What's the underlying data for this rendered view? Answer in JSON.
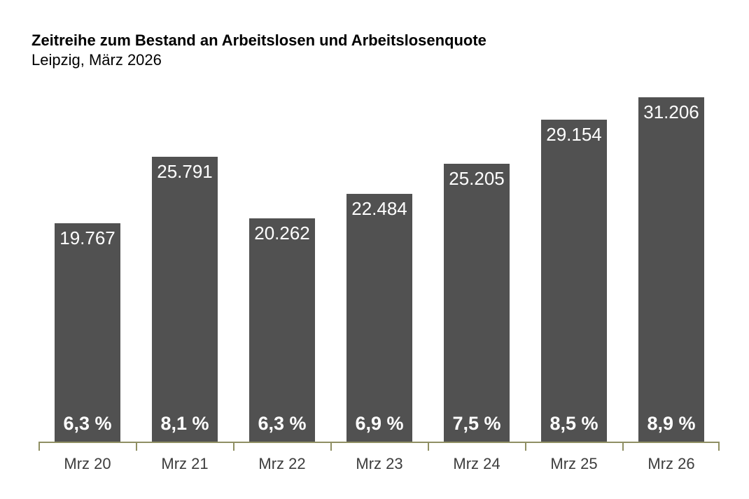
{
  "header": {
    "title": "Zeitreihe zum Bestand an Arbeitslosen und Arbeitslosenquote",
    "subtitle": "Leipzig, März 2026"
  },
  "colors": {
    "background": "#ffffff",
    "bar": "#515151",
    "axis": "#8f8f63",
    "title": "#000000",
    "value_label": "#ffffff",
    "tick_label": "#3d3d3d"
  },
  "chart_data": {
    "type": "bar",
    "title": "Zeitreihe zum Bestand an Arbeitslosen und Arbeitslosenquote",
    "subtitle": "Leipzig, März 2026",
    "categories": [
      "Mrz 20",
      "Mrz 21",
      "Mrz 22",
      "Mrz 23",
      "Mrz 24",
      "Mrz 25",
      "Mrz 26"
    ],
    "series": [
      {
        "name": "Bestand an Arbeitslosen",
        "values": [
          19767,
          25791,
          20262,
          22484,
          25205,
          29154,
          31206
        ],
        "labels": [
          "19.767",
          "25.791",
          "20.262",
          "22.484",
          "25.205",
          "29.154",
          "31.206"
        ],
        "label_position": "inside-top"
      },
      {
        "name": "Arbeitslosenquote",
        "values": [
          6.3,
          8.1,
          6.3,
          6.9,
          7.5,
          8.5,
          8.9
        ],
        "labels": [
          "6,3 %",
          "8,1 %",
          "6,3 %",
          "6,9 %",
          "7,5 %",
          "8,5 %",
          "8,9 %"
        ],
        "label_position": "inside-bottom"
      }
    ],
    "ylim": [
      0,
      31206
    ],
    "grid": false,
    "legend": "none",
    "x_axis": "bottom, olive baseline with downward ticks at category boundaries"
  }
}
